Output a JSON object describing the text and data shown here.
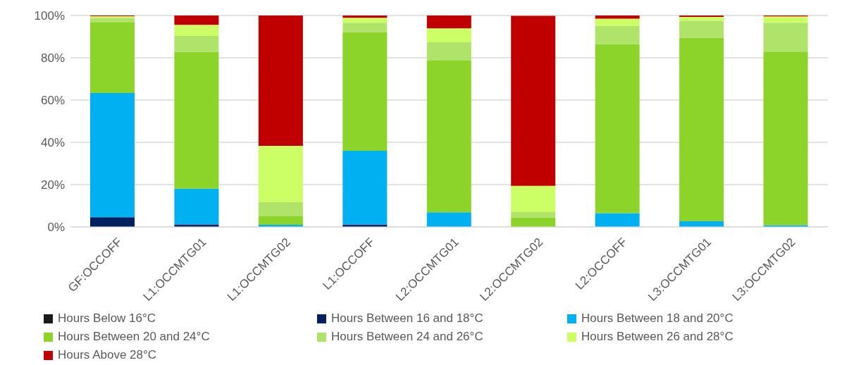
{
  "chart_data": {
    "type": "bar",
    "stacked": true,
    "categories": [
      "GF:OCCOFF",
      "L1:OCCMTG01",
      "L1:OCCMTG02",
      "L1:OCCOFF",
      "L2:OCCMTG01",
      "L2:OCCMTG02",
      "L2:OCCOFF",
      "L3:OCCMTG01",
      "L3:OCCMTG02"
    ],
    "series": [
      {
        "name": "Hours Below 16°C",
        "color": "#1a1a1a",
        "values": [
          0,
          0,
          0,
          0,
          0,
          0,
          0,
          0,
          0
        ]
      },
      {
        "name": "Hours Between 16 and 18°C",
        "color": "#002060",
        "values": [
          4.6,
          1.2,
          0,
          1.1,
          0,
          0,
          0,
          0,
          0
        ]
      },
      {
        "name": "Hours Between 18 and 20°C",
        "color": "#00b0f0",
        "values": [
          58.7,
          16.9,
          1.0,
          34.9,
          6.9,
          null,
          6.5,
          2.7,
          0.8
        ]
      },
      {
        "name": "Hours Between 20 and 24°C",
        "color": "#8cd32a",
        "values": [
          33.6,
          64.7,
          4.0,
          56.1,
          71.8,
          4.4,
          80.0,
          86.8,
          82.1
        ]
      },
      {
        "name": "Hours Between 24 and 26°C",
        "color": "#b0e36a",
        "values": [
          2.0,
          7.5,
          6.7,
          4.5,
          8.6,
          2.6,
          8.6,
          8.1,
          13.7
        ]
      },
      {
        "name": "Hours Between 26 and 28°C",
        "color": "#ccff66",
        "values": [
          0.8,
          5.3,
          26.6,
          2.3,
          6.6,
          12.4,
          3.4,
          1.7,
          3.0
        ]
      },
      {
        "name": "Hours Above 28°C",
        "color": "#c00000",
        "values": [
          0.3,
          4.4,
          61.7,
          1.1,
          6.1,
          80.4,
          1.5,
          0.7,
          0.5
        ]
      }
    ],
    "ylim": [
      0,
      100
    ],
    "yticks": [
      {
        "value": 0,
        "label": "0%"
      },
      {
        "value": 20,
        "label": "20%"
      },
      {
        "value": 40,
        "label": "40%"
      },
      {
        "value": 60,
        "label": "60%"
      },
      {
        "value": 80,
        "label": "80%"
      },
      {
        "value": 100,
        "label": "100%"
      }
    ],
    "grid": "y",
    "legend": "bottom"
  }
}
